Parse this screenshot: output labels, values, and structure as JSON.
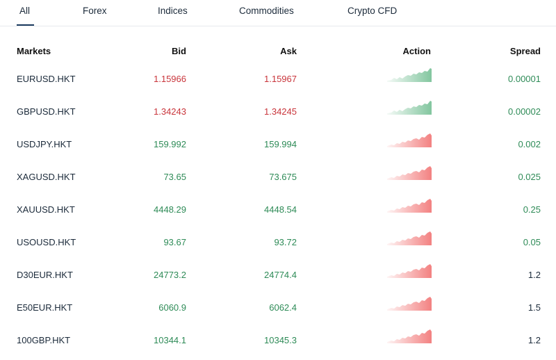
{
  "tabs": [
    {
      "label": "All",
      "active": true
    },
    {
      "label": "Forex",
      "active": false
    },
    {
      "label": "Indices",
      "active": false
    },
    {
      "label": "Commodities",
      "active": false
    },
    {
      "label": "Crypto CFD",
      "active": false
    }
  ],
  "columns": {
    "markets": "Markets",
    "bid": "Bid",
    "ask": "Ask",
    "action": "Action",
    "spread": "Spread"
  },
  "colors": {
    "up": "#2e8b57",
    "down": "#c9353b",
    "neutral": "#1b2a3a",
    "spark_up_fill": "#7cc39a",
    "spark_down_fill": "#f27a7a"
  },
  "rows": [
    {
      "symbol": "EURUSD.HKT",
      "bid": "1.15966",
      "ask": "1.15967",
      "price_direction": "down",
      "spark_icon": "sparkline-up-icon",
      "spread": "0.00001",
      "spread_direction": "up"
    },
    {
      "symbol": "GBPUSD.HKT",
      "bid": "1.34243",
      "ask": "1.34245",
      "price_direction": "down",
      "spark_icon": "sparkline-up-icon",
      "spread": "0.00002",
      "spread_direction": "up"
    },
    {
      "symbol": "USDJPY.HKT",
      "bid": "159.992",
      "ask": "159.994",
      "price_direction": "up",
      "spark_icon": "sparkline-down-icon",
      "spread": "0.002",
      "spread_direction": "up"
    },
    {
      "symbol": "XAGUSD.HKT",
      "bid": "73.65",
      "ask": "73.675",
      "price_direction": "up",
      "spark_icon": "sparkline-down-icon",
      "spread": "0.025",
      "spread_direction": "up"
    },
    {
      "symbol": "XAUUSD.HKT",
      "bid": "4448.29",
      "ask": "4448.54",
      "price_direction": "up",
      "spark_icon": "sparkline-down-icon",
      "spread": "0.25",
      "spread_direction": "up"
    },
    {
      "symbol": "USOUSD.HKT",
      "bid": "93.67",
      "ask": "93.72",
      "price_direction": "up",
      "spark_icon": "sparkline-down-icon",
      "spread": "0.05",
      "spread_direction": "up"
    },
    {
      "symbol": "D30EUR.HKT",
      "bid": "24773.2",
      "ask": "24774.4",
      "price_direction": "up",
      "spark_icon": "sparkline-down-icon",
      "spread": "1.2",
      "spread_direction": "neutral"
    },
    {
      "symbol": "E50EUR.HKT",
      "bid": "6060.9",
      "ask": "6062.4",
      "price_direction": "up",
      "spark_icon": "sparkline-down-icon",
      "spread": "1.5",
      "spread_direction": "neutral"
    },
    {
      "symbol": "100GBP.HKT",
      "bid": "10344.1",
      "ask": "10345.3",
      "price_direction": "up",
      "spark_icon": "sparkline-down-icon",
      "spread": "1.2",
      "spread_direction": "neutral"
    }
  ]
}
